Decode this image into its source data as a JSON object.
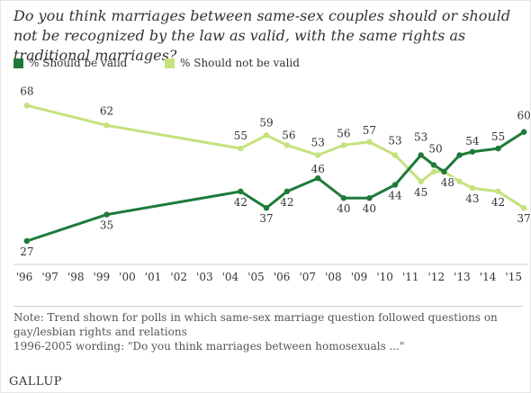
{
  "title": "Do you think marriages between same-sex couples should or should not be recognized by the law as valid, with the same rights as traditional marriages?",
  "legend": {
    "valid_label": "% Should be valid",
    "not_valid_label": "% Should not be valid"
  },
  "colors": {
    "valid": "#1f7a3a",
    "not_valid": "#c4e27d",
    "text": "#333333"
  },
  "note_lines": [
    "Note: Trend shown for polls in which same-sex marriage question followed questions on",
    "gay/lesbian rights and relations",
    "1996-2005 wording: \"Do you think marriages between homosexuals ...\""
  ],
  "brand": "GALLUP",
  "chart_data": {
    "type": "line",
    "x_tick_labels": [
      "'96",
      "'97",
      "'98",
      "'99",
      "'00",
      "'01",
      "'02",
      "'03",
      "'04",
      "'05",
      "'06",
      "'07",
      "'08",
      "'09",
      "'10",
      "'11",
      "'12",
      "'13",
      "'14",
      "'15"
    ],
    "xlim": [
      1996,
      2015.5
    ],
    "ylim": [
      24,
      70
    ],
    "grid": false,
    "legend_position": "top-left",
    "series": [
      {
        "name": "% Should be valid",
        "color": "#1f7a3a",
        "points": [
          {
            "x": 1996.1,
            "y": 27,
            "label": "27"
          },
          {
            "x": 1999.2,
            "y": 35,
            "label": "35"
          },
          {
            "x": 2004.4,
            "y": 42,
            "label": "42"
          },
          {
            "x": 2005.4,
            "y": 37,
            "label": "37"
          },
          {
            "x": 2006.2,
            "y": 42,
            "label": "42"
          },
          {
            "x": 2007.4,
            "y": 46,
            "label": "46"
          },
          {
            "x": 2008.4,
            "y": 40,
            "label": "40"
          },
          {
            "x": 2009.4,
            "y": 40,
            "label": "40"
          },
          {
            "x": 2010.4,
            "y": 44,
            "label": "44"
          },
          {
            "x": 2011.4,
            "y": 53,
            "label": "53"
          },
          {
            "x": 2011.9,
            "y": 50,
            "label": "50"
          },
          {
            "x": 2012.3,
            "y": 48,
            "label": "48"
          },
          {
            "x": 2012.9,
            "y": 53
          },
          {
            "x": 2013.4,
            "y": 54,
            "label": "54"
          },
          {
            "x": 2014.4,
            "y": 55,
            "label": "55"
          },
          {
            "x": 2015.4,
            "y": 60,
            "label": "60"
          }
        ]
      },
      {
        "name": "% Should not be valid",
        "color": "#c4e27d",
        "points": [
          {
            "x": 1996.1,
            "y": 68,
            "label": "68"
          },
          {
            "x": 1999.2,
            "y": 62,
            "label": "62"
          },
          {
            "x": 2004.4,
            "y": 55,
            "label": "55"
          },
          {
            "x": 2005.4,
            "y": 59,
            "label": "59"
          },
          {
            "x": 2006.2,
            "y": 56,
            "label": "56"
          },
          {
            "x": 2007.4,
            "y": 53,
            "label": "53"
          },
          {
            "x": 2008.4,
            "y": 56,
            "label": "56"
          },
          {
            "x": 2009.4,
            "y": 57,
            "label": "57"
          },
          {
            "x": 2010.4,
            "y": 53,
            "label": "53"
          },
          {
            "x": 2011.4,
            "y": 45,
            "label": "45"
          },
          {
            "x": 2011.9,
            "y": 48
          },
          {
            "x": 2012.3,
            "y": 48
          },
          {
            "x": 2012.9,
            "y": 45
          },
          {
            "x": 2013.4,
            "y": 43,
            "label": "43"
          },
          {
            "x": 2014.4,
            "y": 42,
            "label": "42"
          },
          {
            "x": 2015.4,
            "y": 37,
            "label": "37"
          }
        ]
      }
    ]
  }
}
